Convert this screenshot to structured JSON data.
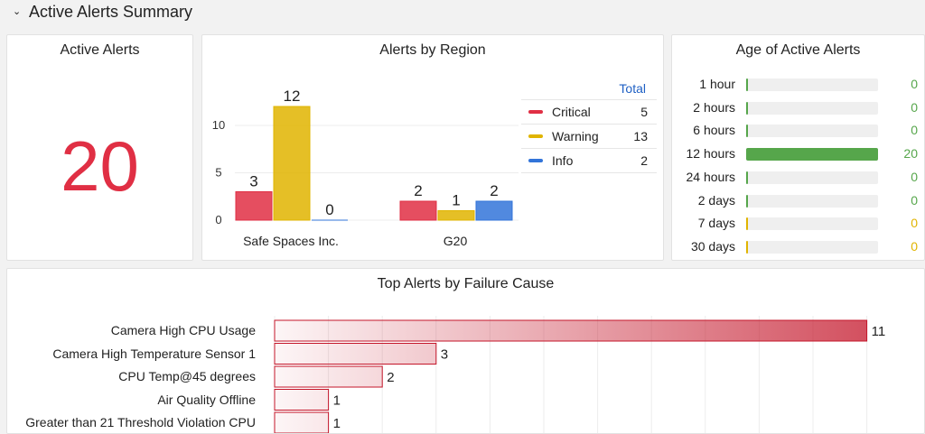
{
  "section": {
    "title": "Active Alerts Summary"
  },
  "colors": {
    "critical": "#e02f44",
    "warning": "#e0b400",
    "info": "#3274d9",
    "ok_green": "#56a64b",
    "total_blue": "#1f60c4",
    "cause_red": "#c4162a"
  },
  "active_alerts": {
    "title": "Active Alerts",
    "value": "20"
  },
  "alerts_by_region": {
    "title": "Alerts by Region",
    "legend_header": "Total",
    "legend": [
      {
        "name": "Critical",
        "value": "5"
      },
      {
        "name": "Warning",
        "value": "13"
      },
      {
        "name": "Info",
        "value": "2"
      }
    ]
  },
  "age_of_alerts": {
    "title": "Age of Active Alerts",
    "max": 20,
    "rows": [
      {
        "label": "1 hour",
        "value": 0,
        "color": "green"
      },
      {
        "label": "2 hours",
        "value": 0,
        "color": "green"
      },
      {
        "label": "6 hours",
        "value": 0,
        "color": "green"
      },
      {
        "label": "12 hours",
        "value": 20,
        "color": "green"
      },
      {
        "label": "24 hours",
        "value": 0,
        "color": "green"
      },
      {
        "label": "2 days",
        "value": 0,
        "color": "green"
      },
      {
        "label": "7 days",
        "value": 0,
        "color": "yellow"
      },
      {
        "label": "30 days",
        "value": 0,
        "color": "yellow"
      }
    ]
  },
  "top_causes": {
    "title": "Top Alerts by Failure Cause",
    "max": 11,
    "rows": [
      {
        "label": "Camera High CPU Usage",
        "value": 11
      },
      {
        "label": "Camera High Temperature Sensor 1",
        "value": 3
      },
      {
        "label": "CPU Temp@45 degrees",
        "value": 2
      },
      {
        "label": "Air Quality Offline",
        "value": 1
      },
      {
        "label": "Greater than 21 Threshold Violation CPU",
        "value": 1
      }
    ]
  },
  "chart_data": [
    {
      "type": "bar",
      "title": "Alerts by Region",
      "categories": [
        "Safe Spaces Inc.",
        "G20"
      ],
      "series": [
        {
          "name": "Critical",
          "values": [
            3,
            2
          ]
        },
        {
          "name": "Warning",
          "values": [
            12,
            1
          ]
        },
        {
          "name": "Info",
          "values": [
            0,
            2
          ]
        }
      ],
      "yticks": [
        "0",
        "5",
        "10"
      ],
      "ylim": [
        0,
        13
      ],
      "grid": true,
      "legend_position": "right"
    },
    {
      "type": "bar",
      "title": "Age of Active Alerts",
      "orientation": "horizontal",
      "categories": [
        "1 hour",
        "2 hours",
        "6 hours",
        "12 hours",
        "24 hours",
        "2 days",
        "7 days",
        "30 days"
      ],
      "values": [
        0,
        0,
        0,
        20,
        0,
        0,
        0,
        0
      ]
    },
    {
      "type": "bar",
      "title": "Top Alerts by Failure Cause",
      "orientation": "horizontal",
      "categories": [
        "Camera High CPU Usage",
        "Camera High Temperature Sensor 1",
        "CPU Temp@45 degrees",
        "Air Quality Offline",
        "Greater than 21 Threshold Violation CPU"
      ],
      "values": [
        11,
        3,
        2,
        1,
        1
      ],
      "grid": true
    }
  ]
}
